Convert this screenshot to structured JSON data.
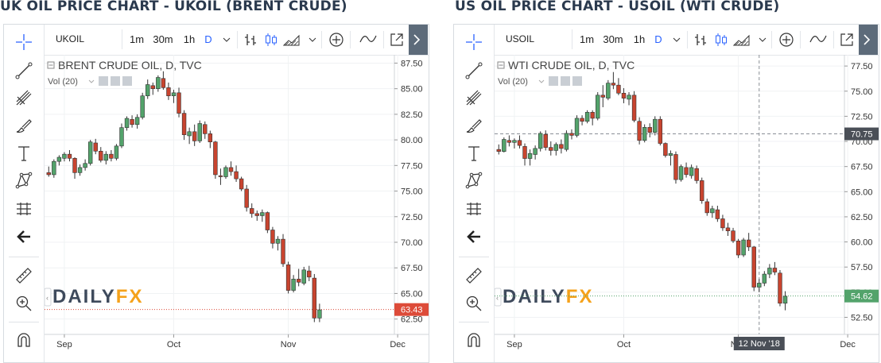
{
  "left": {
    "title": "UK OIL PRICE CHART - UKOIL (BRENT CRUDE)",
    "symbol": "UKOIL",
    "timeframes": [
      "1m",
      "30m",
      "1h",
      "D"
    ],
    "legend": "BRENT CRUDE OIL, D, TVC",
    "vol_label": "Vol (20)",
    "watermark": {
      "daily": "DAILY",
      "fx": "FX"
    },
    "colors": {
      "up": "#53a36b",
      "down": "#c8442f",
      "last_price": "#dd4b39"
    },
    "chart_data": {
      "type": "candlestick",
      "y_ticks": [
        62.5,
        65,
        67.5,
        70,
        72.5,
        75,
        77.5,
        80,
        82.5,
        85,
        87.5
      ],
      "y_tick_labels": [
        "62.50",
        "65.00",
        "67.50",
        "70.00",
        "72.50",
        "75.00",
        "77.50",
        "80.00",
        "82.50",
        "85.00",
        "87.50"
      ],
      "ylim": [
        61.0,
        88.0
      ],
      "x_tick_labels": [
        "Sep",
        "Oct",
        "Nov",
        "Dec"
      ],
      "x_tick_index": [
        3,
        24,
        46,
        67
      ],
      "last_price": 63.43,
      "last_price_label": "63.43",
      "crosshair": null,
      "candles": [
        [
          76.8,
          77.4,
          76.4,
          76.6
        ],
        [
          76.6,
          78.1,
          76.3,
          77.9
        ],
        [
          77.9,
          78.5,
          77.5,
          78.3
        ],
        [
          78.2,
          78.8,
          77.9,
          78.6
        ],
        [
          78.6,
          79.0,
          77.9,
          78.2
        ],
        [
          78.2,
          78.3,
          76.2,
          76.8
        ],
        [
          76.8,
          77.6,
          76.5,
          77.3
        ],
        [
          77.3,
          78.1,
          77.0,
          77.7
        ],
        [
          77.7,
          80.0,
          77.5,
          79.8
        ],
        [
          79.7,
          80.1,
          78.6,
          78.9
        ],
        [
          78.9,
          79.3,
          77.8,
          78.0
        ],
        [
          78.0,
          78.9,
          77.6,
          78.6
        ],
        [
          78.6,
          79.0,
          77.9,
          78.2
        ],
        [
          78.2,
          79.6,
          78.0,
          79.4
        ],
        [
          79.4,
          81.6,
          79.2,
          81.2
        ],
        [
          81.2,
          82.3,
          80.9,
          82.1
        ],
        [
          82.0,
          82.4,
          81.2,
          81.5
        ],
        [
          81.5,
          82.5,
          81.1,
          82.2
        ],
        [
          82.2,
          84.6,
          82.0,
          84.3
        ],
        [
          84.3,
          85.9,
          84.0,
          85.4
        ],
        [
          85.3,
          85.6,
          84.4,
          85.0
        ],
        [
          85.0,
          86.3,
          84.7,
          86.1
        ],
        [
          86.0,
          86.7,
          84.9,
          85.1
        ],
        [
          85.1,
          85.6,
          83.9,
          84.3
        ],
        [
          84.3,
          84.9,
          83.6,
          84.6
        ],
        [
          84.6,
          85.1,
          82.2,
          82.6
        ],
        [
          82.6,
          82.9,
          80.0,
          80.5
        ],
        [
          80.4,
          81.2,
          79.6,
          80.8
        ],
        [
          80.8,
          81.5,
          79.4,
          79.9
        ],
        [
          79.9,
          81.9,
          79.7,
          81.6
        ],
        [
          81.5,
          81.8,
          80.1,
          80.6
        ],
        [
          80.6,
          80.9,
          79.2,
          79.8
        ],
        [
          79.8,
          79.9,
          76.2,
          76.6
        ],
        [
          76.5,
          77.2,
          75.6,
          76.4
        ],
        [
          76.4,
          77.5,
          76.2,
          77.3
        ],
        [
          77.3,
          77.9,
          76.5,
          76.9
        ],
        [
          76.9,
          77.5,
          75.9,
          76.2
        ],
        [
          76.2,
          76.4,
          75.0,
          75.2
        ],
        [
          75.2,
          75.6,
          73.0,
          73.4
        ],
        [
          73.3,
          73.8,
          72.4,
          72.8
        ],
        [
          72.8,
          73.1,
          72.1,
          72.6
        ],
        [
          72.6,
          73.2,
          72.0,
          72.9
        ],
        [
          72.9,
          73.0,
          70.9,
          71.2
        ],
        [
          71.2,
          71.5,
          69.4,
          69.9
        ],
        [
          69.9,
          70.6,
          69.2,
          70.3
        ],
        [
          70.3,
          70.8,
          67.6,
          67.9
        ],
        [
          67.8,
          68.1,
          65.0,
          65.3
        ],
        [
          65.3,
          66.8,
          65.1,
          66.4
        ],
        [
          66.4,
          67.4,
          65.7,
          66.1
        ],
        [
          66.0,
          67.6,
          65.8,
          67.3
        ],
        [
          67.2,
          67.7,
          66.2,
          66.6
        ],
        [
          66.5,
          66.9,
          62.2,
          62.6
        ],
        [
          62.6,
          64.0,
          62.2,
          63.4
        ]
      ]
    }
  },
  "right": {
    "title": "US OIL PRICE CHART - USOIL (WTI CRUDE)",
    "symbol": "USOIL",
    "timeframes": [
      "1m",
      "30m",
      "1h",
      "D"
    ],
    "legend": "WTI CRUDE OIL, D, TVC",
    "vol_label": "Vol (20)",
    "watermark": {
      "daily": "DAILY",
      "fx": "FX"
    },
    "colors": {
      "up": "#53a36b",
      "down": "#c8442f",
      "last_price": "#53a36b"
    },
    "chart_data": {
      "type": "candlestick",
      "y_ticks": [
        52.5,
        55,
        57.5,
        60,
        62.5,
        65,
        67.5,
        70,
        72.5,
        75,
        77.5
      ],
      "y_tick_labels": [
        "52.50",
        "55.00",
        "57.50",
        "60.00",
        "62.50",
        "65.00",
        "67.50",
        "70.00",
        "72.50",
        "75.00",
        "77.50"
      ],
      "ylim": [
        50.8,
        78.3
      ],
      "x_tick_labels": [
        "Sep",
        "Oct",
        "Nov",
        "Dec"
      ],
      "x_tick_index": [
        3,
        24,
        46,
        67
      ],
      "last_price": 54.62,
      "last_price_label": "54.62",
      "crosshair": {
        "price": 70.75,
        "price_label": "70.75",
        "index": 50,
        "date_label": "12 Nov '18"
      },
      "candles": [
        [
          69.2,
          69.7,
          68.7,
          69.0
        ],
        [
          69.0,
          70.4,
          68.9,
          70.2
        ],
        [
          70.1,
          70.6,
          69.5,
          69.9
        ],
        [
          69.9,
          70.3,
          69.3,
          70.1
        ],
        [
          70.1,
          70.6,
          69.3,
          69.6
        ],
        [
          69.5,
          69.8,
          67.6,
          68.3
        ],
        [
          68.3,
          69.2,
          67.6,
          68.8
        ],
        [
          68.7,
          69.6,
          68.2,
          69.3
        ],
        [
          69.3,
          71.0,
          69.0,
          70.8
        ],
        [
          70.7,
          71.1,
          69.1,
          69.4
        ],
        [
          69.4,
          70.0,
          68.6,
          69.1
        ],
        [
          69.1,
          69.9,
          68.6,
          69.7
        ],
        [
          69.7,
          70.2,
          68.8,
          69.3
        ],
        [
          69.2,
          71.1,
          69.0,
          70.8
        ],
        [
          70.8,
          71.2,
          70.2,
          70.6
        ],
        [
          70.6,
          72.6,
          70.4,
          72.3
        ],
        [
          72.3,
          72.6,
          71.6,
          72.0
        ],
        [
          72.0,
          73.1,
          71.8,
          72.9
        ],
        [
          72.9,
          73.1,
          71.6,
          72.3
        ],
        [
          72.3,
          74.9,
          72.1,
          74.6
        ],
        [
          74.6,
          75.6,
          73.4,
          74.4
        ],
        [
          74.3,
          76.1,
          74.1,
          75.8
        ],
        [
          75.8,
          76.9,
          75.2,
          75.6
        ],
        [
          75.6,
          76.3,
          74.6,
          74.8
        ],
        [
          74.8,
          75.3,
          73.8,
          74.3
        ],
        [
          74.2,
          74.9,
          73.6,
          74.6
        ],
        [
          74.6,
          75.0,
          71.9,
          72.1
        ],
        [
          72.0,
          72.4,
          69.7,
          70.1
        ],
        [
          70.1,
          71.7,
          69.9,
          71.4
        ],
        [
          71.4,
          71.8,
          70.4,
          70.9
        ],
        [
          70.9,
          72.5,
          70.6,
          72.2
        ],
        [
          72.2,
          72.5,
          69.6,
          69.8
        ],
        [
          69.8,
          69.9,
          68.4,
          68.6
        ],
        [
          68.6,
          69.1,
          67.6,
          68.8
        ],
        [
          68.7,
          69.0,
          65.8,
          66.2
        ],
        [
          66.2,
          67.7,
          66.0,
          67.5
        ],
        [
          67.4,
          67.9,
          66.4,
          66.7
        ],
        [
          66.6,
          67.7,
          66.3,
          67.4
        ],
        [
          67.3,
          67.6,
          65.8,
          66.1
        ],
        [
          66.1,
          66.4,
          63.8,
          64.1
        ],
        [
          64.0,
          64.3,
          62.6,
          62.9
        ],
        [
          62.9,
          63.6,
          62.4,
          63.3
        ],
        [
          63.2,
          63.6,
          62.0,
          62.3
        ],
        [
          62.3,
          62.7,
          61.1,
          61.4
        ],
        [
          61.4,
          61.9,
          60.6,
          61.1
        ],
        [
          61.1,
          61.4,
          59.9,
          60.1
        ],
        [
          60.1,
          60.3,
          58.4,
          58.7
        ],
        [
          58.7,
          60.4,
          58.5,
          60.2
        ],
        [
          60.2,
          60.9,
          59.1,
          59.5
        ],
        [
          59.5,
          59.6,
          55.1,
          55.5
        ],
        [
          55.5,
          56.3,
          55.0,
          55.9
        ],
        [
          55.9,
          57.1,
          55.6,
          56.8
        ],
        [
          56.8,
          57.8,
          56.4,
          57.4
        ],
        [
          57.4,
          58.0,
          56.7,
          57.0
        ],
        [
          56.9,
          57.2,
          53.6,
          53.9
        ],
        [
          53.9,
          55.1,
          53.2,
          54.6
        ]
      ]
    }
  }
}
